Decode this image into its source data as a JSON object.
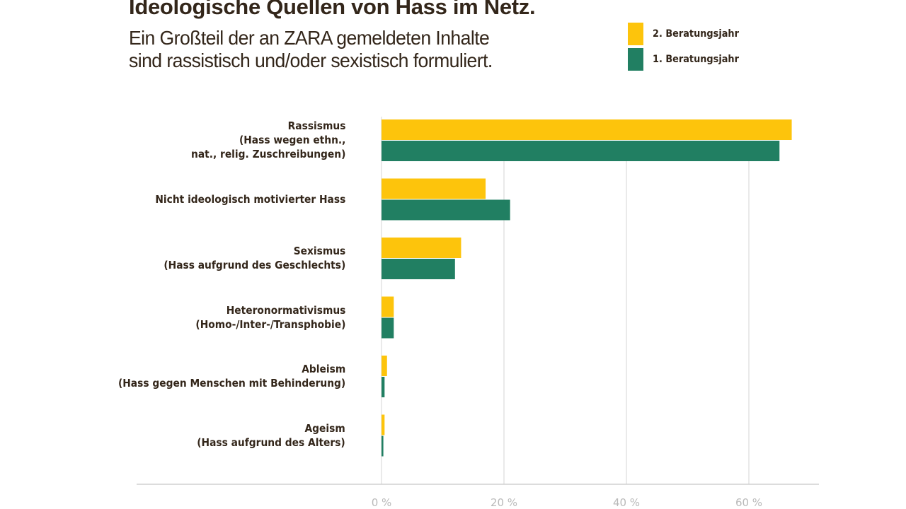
{
  "chart_data": {
    "type": "bar",
    "orientation": "horizontal",
    "title": "Ideologische Quellen von Hass im Netz.",
    "subtitle": [
      "Ein Großteil der an ZARA gemeldeten Inhalte",
      "sind rassistisch und/oder sexistisch formuliert."
    ],
    "categories": [
      "Rassismus\n(Hass wegen ethn.,\nnat., relig. Zuschreibungen)",
      "Nicht ideologisch motivierter Hass",
      "Sexismus\n(Hass aufgrund des Geschlechts)",
      "Heteronormativismus\n(Homo-/Inter-/Transphobie)",
      "Ableism\n(Hass gegen Menschen mit Behinderung)",
      "Ageism\n(Hass aufgrund des Alters)"
    ],
    "series": [
      {
        "name": "2. Beratungsjahr",
        "color": "#fdc40c",
        "values": [
          67,
          17,
          13,
          2,
          0.9,
          0.5
        ]
      },
      {
        "name": "1. Beratungsjahr",
        "color": "#217f62",
        "values": [
          65,
          21,
          12,
          2,
          0.5,
          0.3
        ]
      }
    ],
    "xlim": [
      0,
      70
    ],
    "xticks": [
      0,
      20,
      40,
      60
    ],
    "xtick_labels": [
      "0 %",
      "20 %",
      "40 %",
      "60 %"
    ],
    "xlabel": "",
    "ylabel": "",
    "grid": "vertical",
    "legend_placement": "top-right"
  }
}
